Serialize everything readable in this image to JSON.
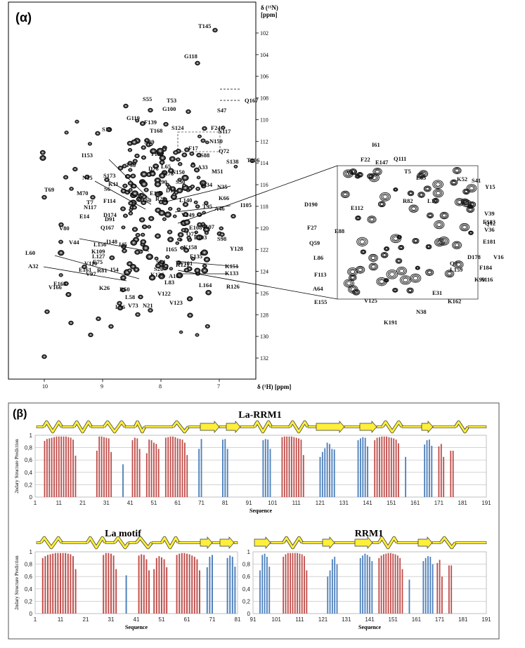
{
  "panel_a": {
    "label": "(α)",
    "y_axis_label": "δ (¹⁵N)",
    "y_axis_unit": "[ppm]",
    "x_axis_label": "δ (¹H) [ppm]",
    "x_ticks": [
      "10",
      "9",
      "8",
      "7"
    ],
    "y_ticks": [
      "102",
      "104",
      "106",
      "108",
      "110",
      "112",
      "114",
      "116",
      "118",
      "120",
      "122",
      "124",
      "126",
      "128",
      "130",
      "132"
    ],
    "peak_labels": [
      "T145",
      "G118",
      "Q167",
      "S47",
      "T53",
      "G100",
      "G119",
      "S55",
      "F139",
      "T168",
      "S18",
      "S124",
      "F24",
      "N117",
      "N89",
      "N150",
      "F17",
      "Q72",
      "T154",
      "S88",
      "S138",
      "T106",
      "T56",
      "L65",
      "K78",
      "A33",
      "M51",
      "I153",
      "N15",
      "D76",
      "S173",
      "N150",
      "S30",
      "I90",
      "K11",
      "S6",
      "D19",
      "K34",
      "N35",
      "K66",
      "T69",
      "E144",
      "F114",
      "G160",
      "R29",
      "M70",
      "L140",
      "T95",
      "I105",
      "T7",
      "E14",
      "A46",
      "N117",
      "V149",
      "D91",
      "V80",
      "I107",
      "D174",
      "Q167",
      "E108",
      "V44",
      "I45",
      "L156",
      "E103",
      "Q72",
      "S98",
      "I148",
      "K109",
      "K158",
      "F135",
      "I165",
      "Y128",
      "V110",
      "L127",
      "E75",
      "R81",
      "I54",
      "S20",
      "S74",
      "W101",
      "L60",
      "E161",
      "V97",
      "K121",
      "K151",
      "A32",
      "E163",
      "K133",
      "K136",
      "A165",
      "V166",
      "K26",
      "R50",
      "L83",
      "L164",
      "L58",
      "V122",
      "R126",
      "V73",
      "V123",
      "L96",
      "N21"
    ],
    "inset_labels": [
      "I61",
      "F22",
      "E147",
      "Q111",
      "V13",
      "T5",
      "E63",
      "K52",
      "S41",
      "Y15",
      "R82",
      "L10",
      "D190",
      "E112",
      "V39",
      "F27",
      "Q12",
      "F183",
      "E88",
      "V36",
      "Q59",
      "E181",
      "V16",
      "L86",
      "D178",
      "Q8",
      "F184",
      "F113",
      "L159",
      "A64",
      "K99",
      "A116",
      "E155",
      "K162",
      "E31",
      "V125",
      "N38",
      "K191"
    ]
  },
  "panel_b": {
    "label": "(β)",
    "chart_data": [
      {
        "type": "bar",
        "title": "La-RRM1",
        "xlabel": "Sequence",
        "ylabel": "2ndary Structure Prediction",
        "xlim": [
          1,
          191
        ],
        "ylim": [
          0,
          1
        ],
        "x_ticks": [
          "1",
          "11",
          "21",
          "31",
          "41",
          "51",
          "61",
          "71",
          "81",
          "91",
          "101",
          "111",
          "121",
          "131",
          "141",
          "151",
          "161",
          "171",
          "181",
          "191"
        ],
        "y_ticks": [
          "0",
          "0,2",
          "0,4",
          "0,6",
          "0,8",
          "1"
        ],
        "series": [
          {
            "color": "#c0504d",
            "x": [
              5,
              6,
              7,
              8,
              9,
              10,
              11,
              12,
              13,
              14,
              15,
              16,
              17,
              18,
              27,
              28,
              29,
              30,
              31,
              32,
              33,
              42,
              43,
              44,
              45,
              48,
              49,
              50,
              51,
              52,
              53,
              56,
              57,
              58,
              59,
              60,
              61,
              62,
              63,
              64,
              65,
              105,
              106,
              107,
              108,
              109,
              110,
              111,
              112,
              113,
              114,
              144,
              145,
              146,
              147,
              148,
              149,
              150,
              151,
              152,
              153,
              154,
              171,
              172,
              173,
              176,
              177
            ],
            "values": [
              0.91,
              0.94,
              0.95,
              0.96,
              0.97,
              0.98,
              0.98,
              0.98,
              0.98,
              0.98,
              0.97,
              0.96,
              0.93,
              0.67,
              0.75,
              0.98,
              0.98,
              0.97,
              0.96,
              0.95,
              0.73,
              0.92,
              0.96,
              0.95,
              0.78,
              0.71,
              0.93,
              0.92,
              0.88,
              0.86,
              0.78,
              0.96,
              0.97,
              0.98,
              0.98,
              0.97,
              0.95,
              0.94,
              0.93,
              0.88,
              0.68,
              0.97,
              0.98,
              0.98,
              0.98,
              0.98,
              0.97,
              0.96,
              0.95,
              0.93,
              0.68,
              0.92,
              0.96,
              0.97,
              0.98,
              0.98,
              0.98,
              0.97,
              0.96,
              0.95,
              0.93,
              0.87,
              0.82,
              0.86,
              0.65,
              0.75,
              0.75
            ]
          },
          {
            "color": "#4f81bd",
            "x": [
              38,
              70,
              71,
              80,
              81,
              82,
              97,
              98,
              99,
              100,
              121,
              122,
              123,
              124,
              125,
              126,
              127,
              137,
              138,
              139,
              140,
              141,
              157,
              165,
              166,
              167,
              168
            ],
            "values": [
              0.53,
              0.78,
              0.94,
              0.93,
              0.94,
              0.78,
              0.92,
              0.94,
              0.93,
              0.78,
              0.65,
              0.73,
              0.79,
              0.88,
              0.86,
              0.78,
              0.77,
              0.92,
              0.95,
              0.97,
              0.96,
              0.82,
              0.65,
              0.85,
              0.92,
              0.93,
              0.83
            ]
          }
        ]
      },
      {
        "type": "bar",
        "title": "La motif",
        "xlabel": "Sequence",
        "ylabel": "2ndary Structure Prediction",
        "xlim": [
          1,
          81
        ],
        "ylim": [
          0,
          1
        ],
        "x_ticks": [
          "1",
          "11",
          "21",
          "31",
          "41",
          "51",
          "61",
          "71",
          "81"
        ],
        "y_ticks": [
          "0",
          "0,2",
          "0,4",
          "0,6",
          "0,8",
          "1"
        ],
        "series": [
          {
            "color": "#c0504d",
            "x": [
              4,
              5,
              6,
              7,
              8,
              9,
              10,
              11,
              12,
              13,
              14,
              15,
              16,
              17,
              28,
              29,
              30,
              31,
              32,
              33,
              42,
              43,
              44,
              45,
              46,
              48,
              49,
              50,
              51,
              52,
              53,
              57,
              58,
              59,
              60,
              61,
              62,
              63,
              64,
              65,
              66
            ],
            "values": [
              0.9,
              0.93,
              0.95,
              0.96,
              0.97,
              0.98,
              0.98,
              0.98,
              0.98,
              0.98,
              0.97,
              0.96,
              0.93,
              0.72,
              0.95,
              0.98,
              0.98,
              0.97,
              0.94,
              0.72,
              0.94,
              0.96,
              0.95,
              0.88,
              0.7,
              0.72,
              0.9,
              0.93,
              0.91,
              0.88,
              0.75,
              0.95,
              0.97,
              0.98,
              0.98,
              0.97,
              0.96,
              0.94,
              0.92,
              0.88,
              0.7
            ]
          },
          {
            "color": "#4f81bd",
            "x": [
              37,
              69,
              70,
              71,
              77,
              78,
              79,
              80
            ],
            "values": [
              0.62,
              0.75,
              0.92,
              0.95,
              0.9,
              0.94,
              0.92,
              0.76
            ]
          }
        ]
      },
      {
        "type": "bar",
        "title": "RRM1",
        "xlabel": "Sequence",
        "ylabel": "",
        "xlim": [
          91,
          191
        ],
        "ylim": [
          0,
          1
        ],
        "x_ticks": [
          "91",
          "101",
          "111",
          "121",
          "131",
          "141",
          "151",
          "161",
          "171",
          "181",
          "191"
        ],
        "y_ticks": [
          "0",
          "0,2",
          "0,4",
          "0,6",
          "0,8",
          "1"
        ],
        "series": [
          {
            "color": "#c0504d",
            "x": [
              104,
              105,
              106,
              107,
              108,
              109,
              110,
              111,
              112,
              113,
              114,
              145,
              146,
              147,
              148,
              149,
              150,
              151,
              152,
              153,
              154,
              155,
              170,
              171,
              172,
              175,
              176
            ],
            "values": [
              0.92,
              0.96,
              0.98,
              0.98,
              0.98,
              0.98,
              0.98,
              0.97,
              0.96,
              0.93,
              0.7,
              0.9,
              0.94,
              0.96,
              0.97,
              0.98,
              0.98,
              0.97,
              0.96,
              0.94,
              0.9,
              0.72,
              0.82,
              0.87,
              0.6,
              0.78,
              0.78
            ]
          },
          {
            "color": "#4f81bd",
            "x": [
              94,
              95,
              96,
              97,
              98,
              123,
              124,
              125,
              126,
              127,
              137,
              138,
              139,
              140,
              141,
              142,
              158,
              164,
              165,
              166,
              167,
              168
            ],
            "values": [
              0.7,
              0.95,
              0.97,
              0.92,
              0.76,
              0.6,
              0.7,
              0.88,
              0.92,
              0.8,
              0.9,
              0.94,
              0.97,
              0.95,
              0.92,
              0.85,
              0.55,
              0.85,
              0.9,
              0.93,
              0.92,
              0.8
            ]
          }
        ]
      }
    ]
  }
}
